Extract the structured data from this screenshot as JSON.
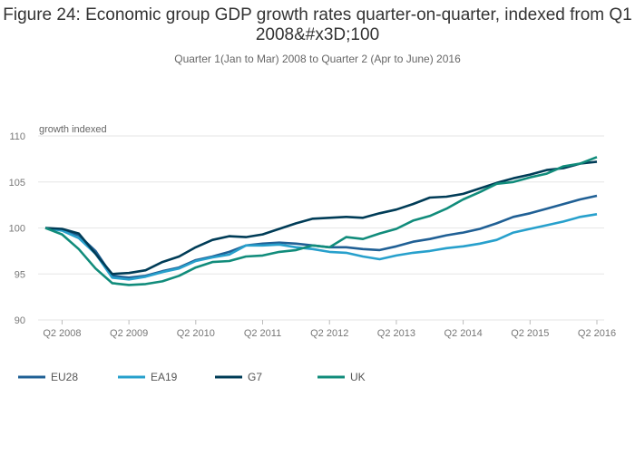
{
  "chart_data": {
    "type": "line",
    "title": "Figure 24: Economic group GDP growth rates quarter-on-quarter, indexed from Q1 2008&#x3D;100",
    "subtitle": "Quarter 1(Jan to Mar) 2008 to Quarter 2 (Apr to June) 2016",
    "ylabel": "growth indexed",
    "xlabel": "",
    "ylim": [
      90,
      110
    ],
    "yticks": [
      90,
      95,
      100,
      105,
      110
    ],
    "xtick_labels": [
      "Q2 2008",
      "Q2 2009",
      "Q2 2010",
      "Q2 2011",
      "Q2 2012",
      "Q2 2013",
      "Q2 2014",
      "Q2 2015",
      "Q2 2016"
    ],
    "x": [
      "Q1 2008",
      "Q2 2008",
      "Q3 2008",
      "Q4 2008",
      "Q1 2009",
      "Q2 2009",
      "Q3 2009",
      "Q4 2009",
      "Q1 2010",
      "Q2 2010",
      "Q3 2010",
      "Q4 2010",
      "Q1 2011",
      "Q2 2011",
      "Q3 2011",
      "Q4 2011",
      "Q1 2012",
      "Q2 2012",
      "Q3 2012",
      "Q4 2012",
      "Q1 2013",
      "Q2 2013",
      "Q3 2013",
      "Q4 2013",
      "Q1 2014",
      "Q2 2014",
      "Q3 2014",
      "Q4 2014",
      "Q1 2015",
      "Q2 2015",
      "Q3 2015",
      "Q4 2015",
      "Q1 2016",
      "Q2 2016"
    ],
    "grid": true,
    "legend_position": "bottom",
    "series": [
      {
        "name": "EU28",
        "color": "#206095",
        "values": [
          100.0,
          99.8,
          99.2,
          97.5,
          94.8,
          94.6,
          94.8,
          95.3,
          95.7,
          96.5,
          96.9,
          97.4,
          98.1,
          98.3,
          98.4,
          98.3,
          98.1,
          97.9,
          97.9,
          97.7,
          97.6,
          98.0,
          98.5,
          98.8,
          99.2,
          99.5,
          99.9,
          100.5,
          101.2,
          101.6,
          102.1,
          102.6,
          103.1,
          103.5
        ]
      },
      {
        "name": "EA19",
        "color": "#27a0cc",
        "values": [
          100.0,
          99.7,
          98.9,
          97.2,
          94.6,
          94.4,
          94.7,
          95.2,
          95.6,
          96.4,
          96.8,
          97.1,
          98.1,
          98.1,
          98.2,
          97.9,
          97.7,
          97.4,
          97.3,
          96.9,
          96.6,
          97.0,
          97.3,
          97.5,
          97.8,
          98.0,
          98.3,
          98.7,
          99.5,
          99.9,
          100.3,
          100.7,
          101.2,
          101.5
        ]
      },
      {
        "name": "G7",
        "color": "#003c57",
        "values": [
          100.0,
          99.9,
          99.4,
          97.2,
          95.0,
          95.1,
          95.4,
          96.3,
          96.9,
          97.9,
          98.7,
          99.1,
          99.0,
          99.3,
          99.9,
          100.5,
          101.0,
          101.1,
          101.2,
          101.1,
          101.6,
          102.0,
          102.6,
          103.3,
          103.4,
          103.7,
          104.3,
          104.9,
          105.4,
          105.8,
          106.3,
          106.5,
          107.0,
          107.2
        ]
      },
      {
        "name": "UK",
        "color": "#118c7b",
        "values": [
          100.0,
          99.3,
          97.7,
          95.6,
          94.0,
          93.8,
          93.9,
          94.2,
          94.8,
          95.7,
          96.3,
          96.4,
          96.9,
          97.0,
          97.4,
          97.6,
          98.1,
          97.9,
          99.0,
          98.8,
          99.4,
          99.9,
          100.8,
          101.3,
          102.1,
          103.1,
          103.9,
          104.8,
          105.0,
          105.5,
          105.9,
          106.7,
          107.0,
          107.7
        ]
      }
    ]
  }
}
